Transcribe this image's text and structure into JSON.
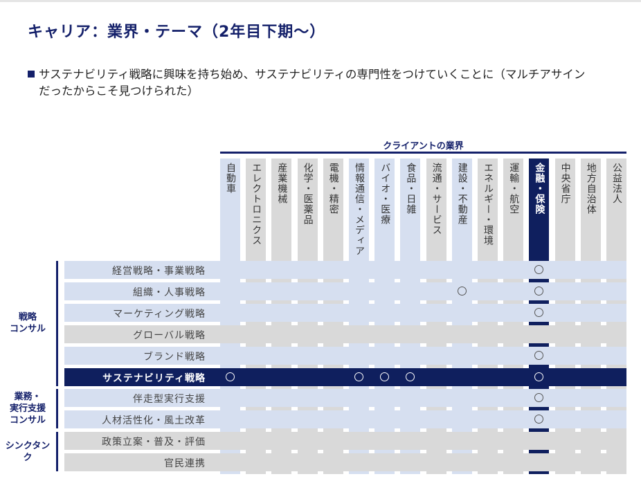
{
  "title": "キャリア：業界・テーマ（2年目下期〜）",
  "bullet": {
    "line1": "サステナビリティ戦略に興味を持ち始め、サステナビリティの専門性をつけていくことに（マルチアサイン",
    "line2": "だったからこそ見つけられた）"
  },
  "client_header": "クライアントの業界",
  "colors": {
    "navy": "#0f1f5e",
    "light": "#d6dff0",
    "gray": "#d9d9d9"
  },
  "columns": [
    {
      "label": "自動車",
      "tone": "light"
    },
    {
      "label": "エレクトロニクス",
      "tone": "gray"
    },
    {
      "label": "産業機械",
      "tone": "gray"
    },
    {
      "label": "化学・医薬品",
      "tone": "gray"
    },
    {
      "label": "電機・精密",
      "tone": "gray"
    },
    {
      "label": "情報通信・メディア",
      "tone": "light"
    },
    {
      "label": "バイオ・医療",
      "tone": "light"
    },
    {
      "label": "食品・日雑",
      "tone": "light"
    },
    {
      "label": "流通・サービス",
      "tone": "gray"
    },
    {
      "label": "建設・不動産",
      "tone": "light"
    },
    {
      "label": "エネルギー・環境",
      "tone": "gray"
    },
    {
      "label": "運輸・航空",
      "tone": "gray"
    },
    {
      "label": "金融・保険",
      "tone": "navy"
    },
    {
      "label": "中央省庁",
      "tone": "gray"
    },
    {
      "label": "地方自治体",
      "tone": "gray"
    },
    {
      "label": "公益法人",
      "tone": "gray"
    }
  ],
  "rows": [
    {
      "label": "経営戦略・事業戦略",
      "tone": "light",
      "marks": [
        12
      ]
    },
    {
      "label": "組織・人事戦略",
      "tone": "light",
      "marks": [
        9,
        12
      ]
    },
    {
      "label": "マーケティング戦略",
      "tone": "light",
      "marks": [
        12
      ]
    },
    {
      "label": "グローバル戦略",
      "tone": "gray",
      "marks": []
    },
    {
      "label": "ブランド戦略",
      "tone": "light",
      "marks": [
        12
      ]
    },
    {
      "label": "サステナビリティ戦略",
      "tone": "navy",
      "marks": [
        0,
        5,
        6,
        7,
        12
      ]
    },
    {
      "label": "伴走型実行支援",
      "tone": "light",
      "marks": [
        12
      ]
    },
    {
      "label": "人材活性化・風土改革",
      "tone": "light",
      "marks": [
        12
      ]
    },
    {
      "label": "政策立案・普及・評価",
      "tone": "gray",
      "marks": []
    },
    {
      "label": "官民連携",
      "tone": "gray",
      "marks": []
    }
  ],
  "groups": [
    {
      "label": "戦略\nコンサル",
      "from": 0,
      "to": 5
    },
    {
      "label": "業務・\n実行支援\nコンサル",
      "from": 6,
      "to": 7
    },
    {
      "label": "シンクタン\nク",
      "from": 8,
      "to": 9
    }
  ],
  "mark_symbol": "○"
}
